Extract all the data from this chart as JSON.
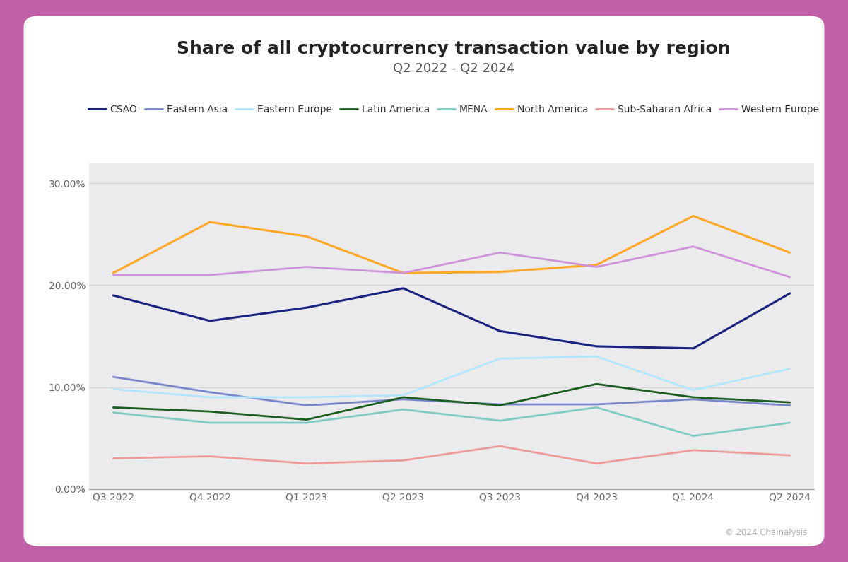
{
  "title": "Share of all cryptocurrency transaction value by region",
  "subtitle": "Q2 2022 - Q2 2024",
  "x_labels": [
    "Q3 2022",
    "Q4 2022",
    "Q1 2023",
    "Q2 2023",
    "Q3 2023",
    "Q4 2023",
    "Q1 2024",
    "Q2 2024"
  ],
  "series": [
    {
      "name": "CSAO",
      "color": "#1a237e",
      "linewidth": 2.2,
      "values": [
        0.19,
        0.165,
        0.178,
        0.197,
        0.155,
        0.14,
        0.138,
        0.192
      ]
    },
    {
      "name": "Eastern Asia",
      "color": "#7986cb",
      "linewidth": 2.0,
      "values": [
        0.11,
        0.095,
        0.082,
        0.088,
        0.083,
        0.083,
        0.088,
        0.082
      ]
    },
    {
      "name": "Eastern Europe",
      "color": "#b3e5fc",
      "linewidth": 2.0,
      "values": [
        0.098,
        0.09,
        0.09,
        0.092,
        0.128,
        0.13,
        0.097,
        0.118
      ]
    },
    {
      "name": "Latin America",
      "color": "#1b5e20",
      "linewidth": 2.0,
      "values": [
        0.08,
        0.076,
        0.068,
        0.09,
        0.082,
        0.103,
        0.09,
        0.085
      ]
    },
    {
      "name": "MENA",
      "color": "#80cbc4",
      "linewidth": 2.0,
      "values": [
        0.075,
        0.065,
        0.065,
        0.078,
        0.067,
        0.08,
        0.052,
        0.065
      ]
    },
    {
      "name": "North America",
      "color": "#ffa726",
      "linewidth": 2.2,
      "values": [
        0.212,
        0.262,
        0.248,
        0.212,
        0.213,
        0.22,
        0.268,
        0.232
      ]
    },
    {
      "name": "Sub-Saharan Africa",
      "color": "#ef9a9a",
      "linewidth": 2.0,
      "values": [
        0.03,
        0.032,
        0.025,
        0.028,
        0.042,
        0.025,
        0.038,
        0.033
      ]
    },
    {
      "name": "Western Europe",
      "color": "#ce93d8",
      "linewidth": 2.0,
      "values": [
        0.21,
        0.21,
        0.218,
        0.212,
        0.232,
        0.218,
        0.238,
        0.208
      ]
    }
  ],
  "ylim": [
    0.0,
    0.32
  ],
  "yticks": [
    0.0,
    0.1,
    0.2,
    0.3
  ],
  "ytick_labels": [
    "0.00%",
    "10.00%",
    "20.00%",
    "30.00%"
  ],
  "bg_outer": "#c060a8",
  "bg_card": "#ffffff",
  "bg_plot": "#ebebed",
  "grid_color": "#d5d5d8",
  "copyright_text": "© 2024 Chainalysis",
  "title_fontsize": 18,
  "subtitle_fontsize": 13,
  "tick_fontsize": 10,
  "legend_fontsize": 10
}
